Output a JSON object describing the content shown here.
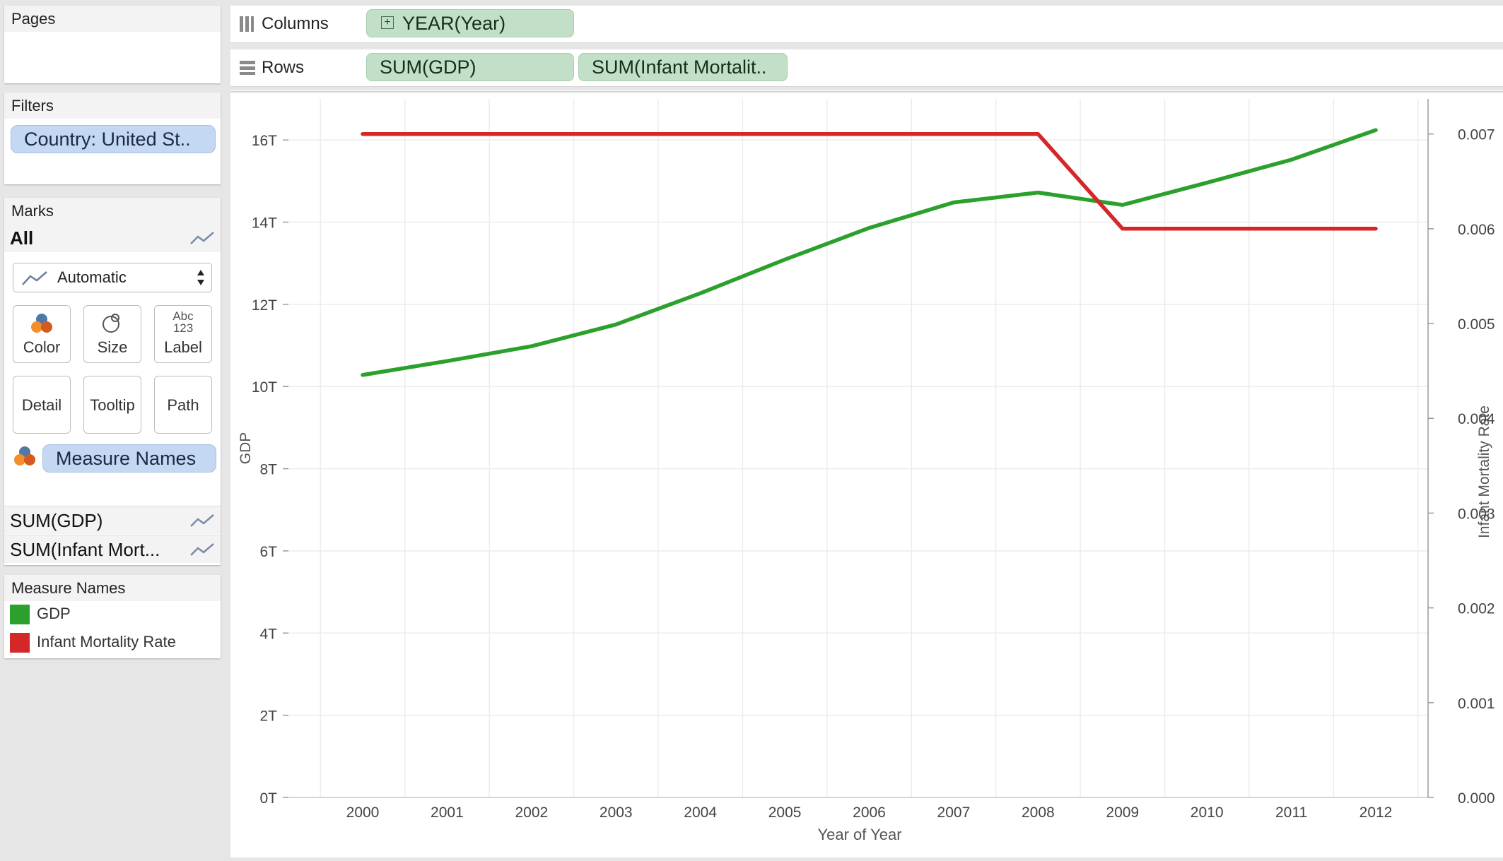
{
  "pages": {
    "title": "Pages"
  },
  "filters": {
    "title": "Filters",
    "items": [
      "Country: United St.."
    ]
  },
  "marks": {
    "title": "Marks",
    "all_label": "All",
    "mark_type": "Automatic",
    "buttons": {
      "color": "Color",
      "size": "Size",
      "label": "Label",
      "label_icon_line1": "Abc",
      "label_icon_line2": "123",
      "detail": "Detail",
      "tooltip": "Tooltip",
      "path": "Path"
    },
    "color_field": "Measure Names",
    "measures": [
      "SUM(GDP)",
      "SUM(Infant Mort..."
    ]
  },
  "legend": {
    "title": "Measure Names",
    "items": [
      {
        "label": "GDP",
        "color": "#2ca02c"
      },
      {
        "label": "Infant Mortality Rate",
        "color": "#d62728"
      }
    ]
  },
  "shelves": {
    "columns": {
      "label": "Columns",
      "pill": "YEAR(Year)",
      "pill_icon": "+"
    },
    "rows": {
      "label": "Rows",
      "pills": [
        "SUM(GDP)",
        "SUM(Infant Mortalit.."
      ]
    }
  },
  "chart_data": {
    "type": "line",
    "x": [
      2000,
      2001,
      2002,
      2003,
      2004,
      2005,
      2006,
      2007,
      2008,
      2009,
      2010,
      2011,
      2012
    ],
    "xlabel": "Year of Year",
    "ylabel": "GDP",
    "ylabel_right": "Infant Mortality Rate",
    "ylim": [
      0,
      17
    ],
    "ylim_right": [
      0,
      0.00737
    ],
    "yticks": [
      "0T",
      "2T",
      "4T",
      "6T",
      "8T",
      "10T",
      "12T",
      "14T",
      "16T"
    ],
    "yticks_right": [
      "0.000",
      "0.001",
      "0.002",
      "0.003",
      "0.004",
      "0.005",
      "0.006",
      "0.007"
    ],
    "grid": true,
    "series": [
      {
        "name": "GDP",
        "axis": "left",
        "color": "#2ca02c",
        "values": [
          10.28,
          10.62,
          10.98,
          11.51,
          12.27,
          13.09,
          13.86,
          14.48,
          14.72,
          14.42,
          14.96,
          15.52,
          16.24
        ]
      },
      {
        "name": "Infant Mortality Rate",
        "axis": "right",
        "color": "#d62728",
        "values": [
          0.007,
          0.007,
          0.007,
          0.007,
          0.007,
          0.007,
          0.007,
          0.007,
          0.007,
          0.006,
          0.006,
          0.006,
          0.006
        ]
      }
    ]
  }
}
